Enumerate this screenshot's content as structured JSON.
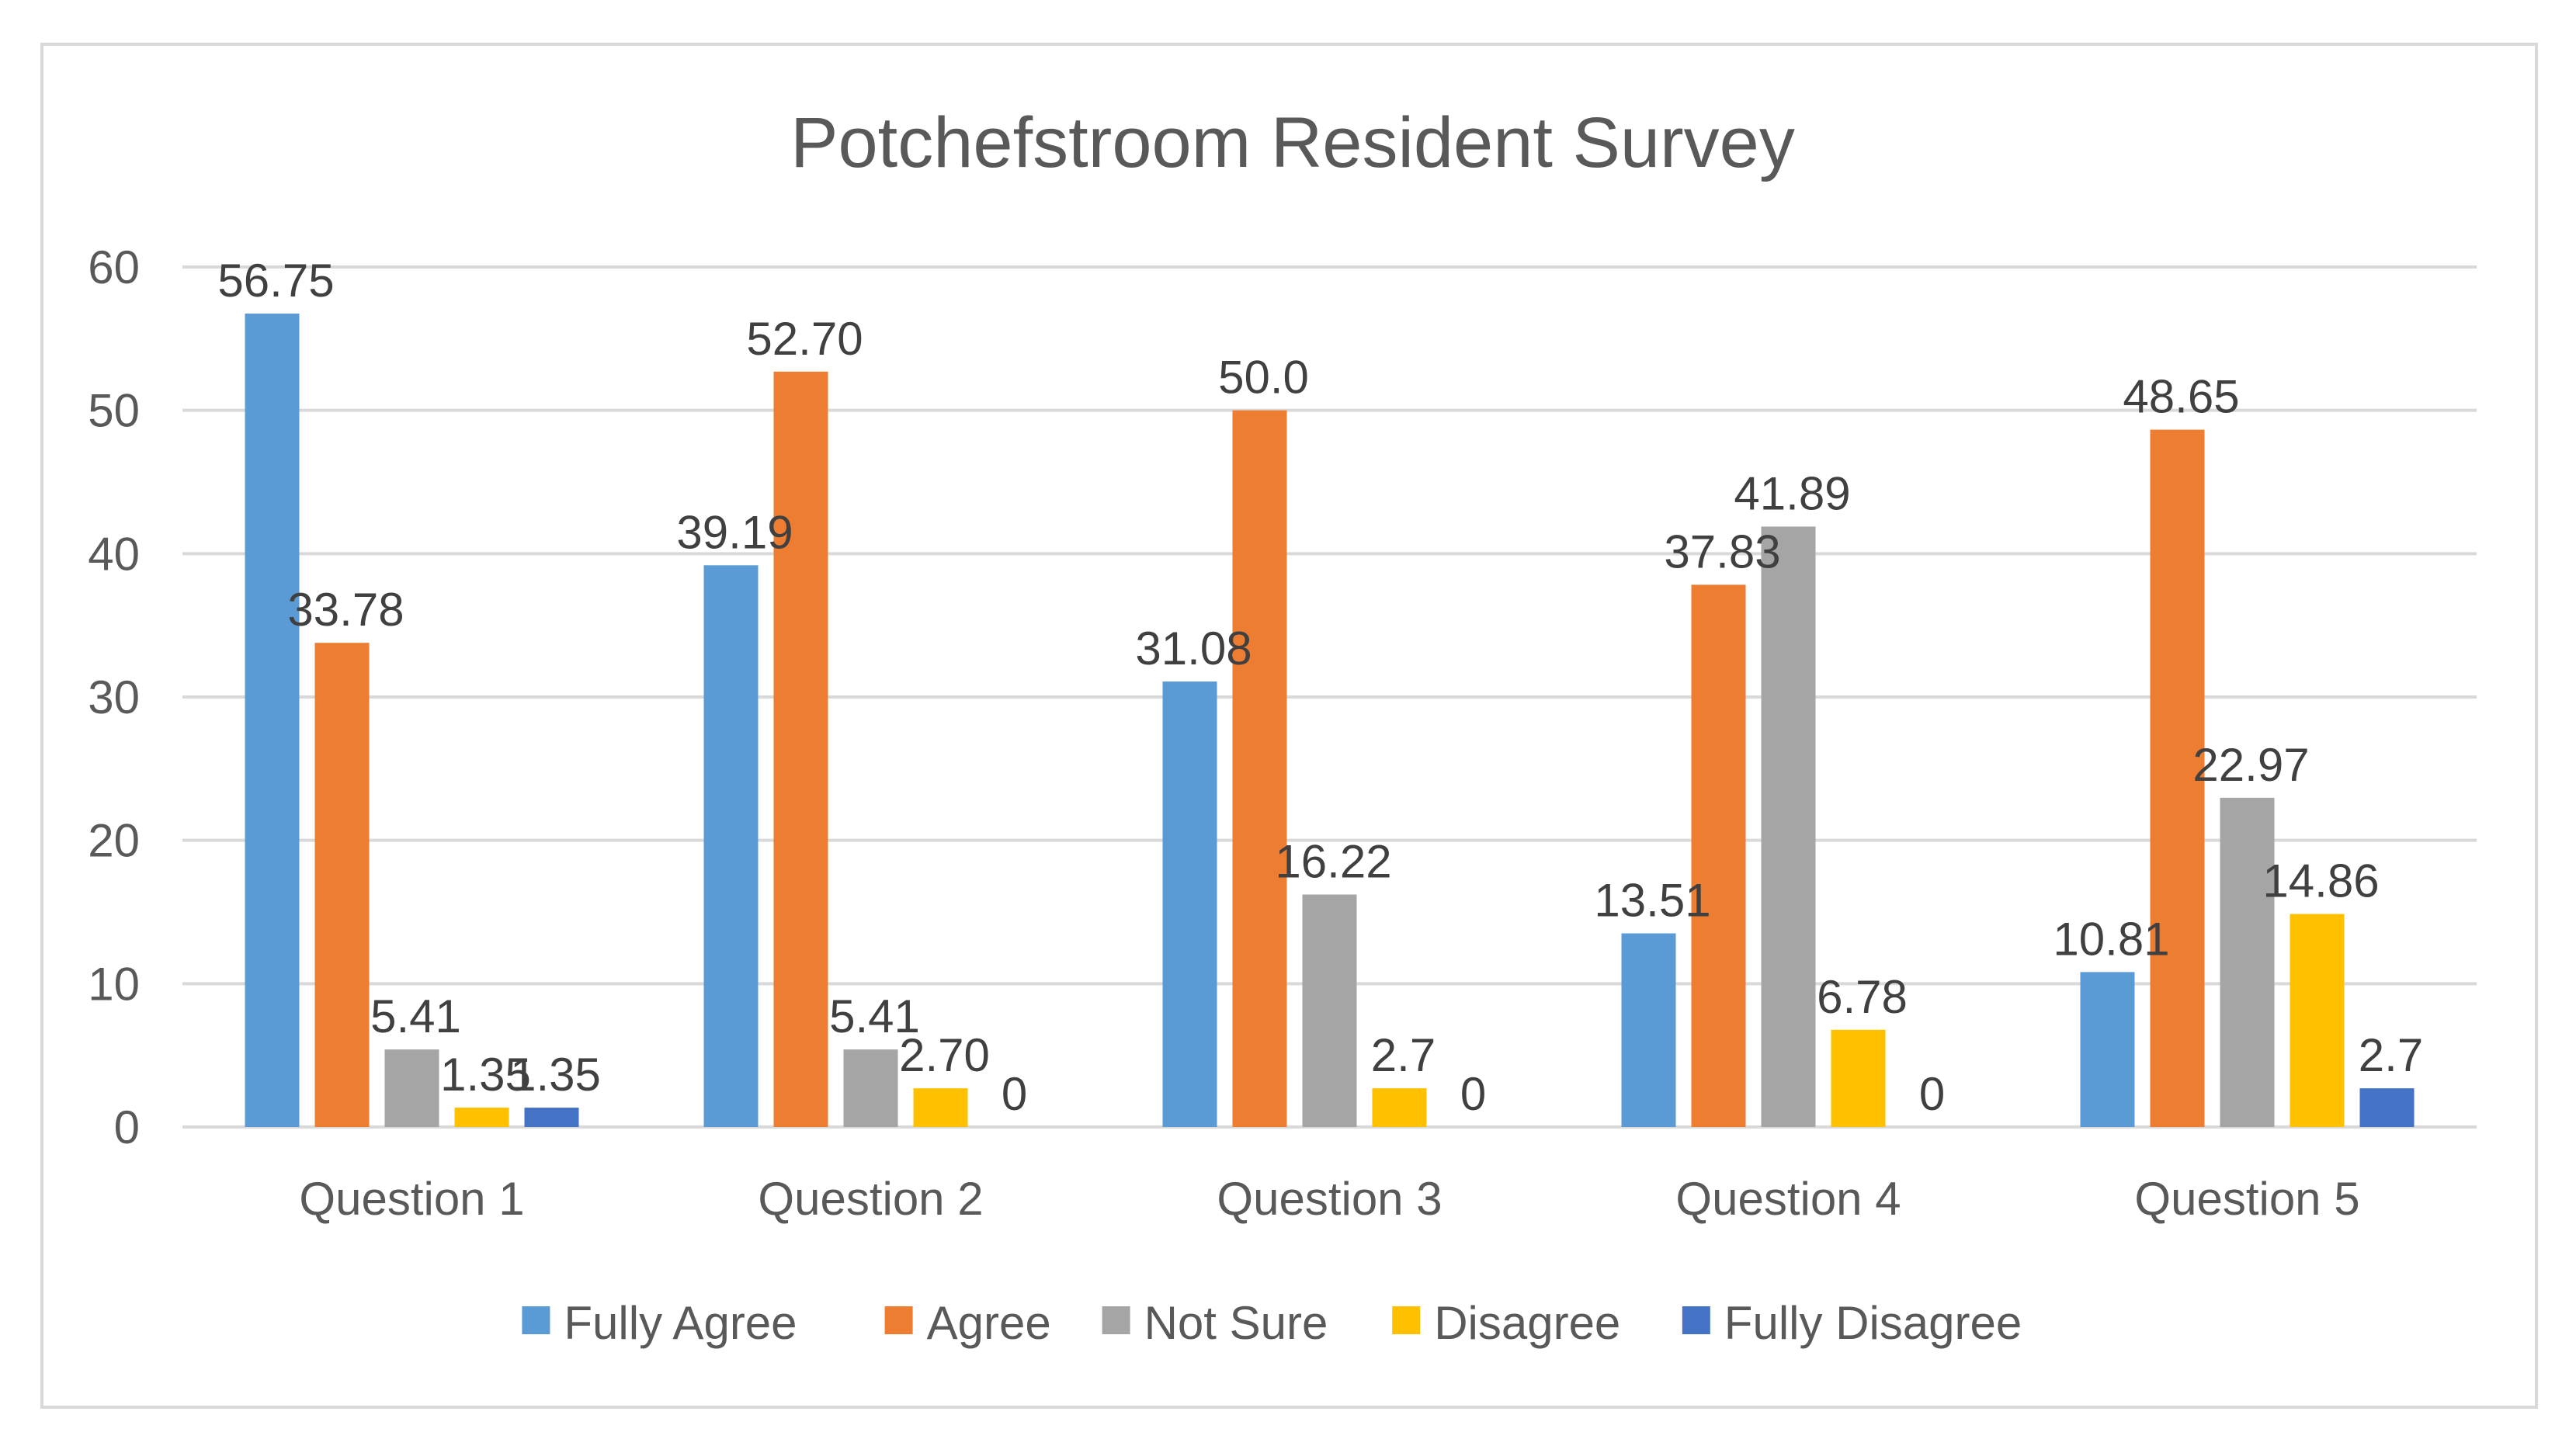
{
  "chart_data": {
    "type": "bar",
    "title": "Potchefstroom Resident Survey",
    "xlabel": "",
    "ylabel": "",
    "ylim": [
      0,
      60
    ],
    "yticks": [
      0,
      10,
      20,
      30,
      40,
      50,
      60
    ],
    "grid": true,
    "legend_position": "bottom",
    "categories": [
      "Question 1",
      "Question 2",
      "Question 3",
      "Question 4",
      "Question 5"
    ],
    "series": [
      {
        "name": "Fully Agree",
        "color": "#5b9bd5",
        "values": [
          56.75,
          39.19,
          31.08,
          13.51,
          10.81
        ],
        "labels": [
          "56.75",
          "39.19",
          "31.08",
          "13.51",
          "10.81"
        ]
      },
      {
        "name": "Agree",
        "color": "#ed7d31",
        "values": [
          33.78,
          52.7,
          50.0,
          37.83,
          48.65
        ],
        "labels": [
          "33.78",
          "52.70",
          "50.0",
          "37.83",
          "48.65"
        ]
      },
      {
        "name": "Not Sure",
        "color": "#a5a5a5",
        "values": [
          5.41,
          5.41,
          16.22,
          41.89,
          22.97
        ],
        "labels": [
          "5.41",
          "5.41",
          "16.22",
          "41.89",
          "22.97"
        ]
      },
      {
        "name": "Disagree",
        "color": "#ffc000",
        "values": [
          1.35,
          2.7,
          2.7,
          6.78,
          14.86
        ],
        "labels": [
          "1.35",
          "2.70",
          "2.7",
          "6.78",
          "14.86"
        ]
      },
      {
        "name": "Fully Disagree",
        "color": "#4472c4",
        "values": [
          1.35,
          0,
          0,
          0,
          2.7
        ],
        "labels": [
          "1.35",
          "0",
          "0",
          "0",
          "2.7"
        ]
      }
    ]
  }
}
